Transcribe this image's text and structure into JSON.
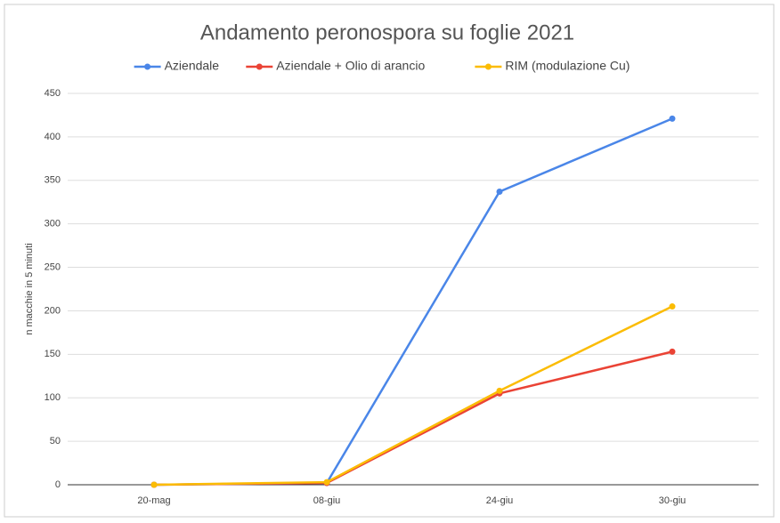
{
  "chart_data": {
    "type": "line",
    "title": "Andamento peronospora su foglie 2021",
    "ylabel": "n macchie in 5 minuti",
    "categories": [
      "20-mag",
      "08-giu",
      "24-giu",
      "30-giu"
    ],
    "series": [
      {
        "name": "Aziendale",
        "color": "#4a86e8",
        "values": [
          0,
          2,
          337,
          421
        ]
      },
      {
        "name": "Aziendale + Olio di arancio",
        "color": "#ea4335",
        "values": [
          0,
          2,
          105,
          153
        ]
      },
      {
        "name": "RIM (modulazione Cu)",
        "color": "#fbbc04",
        "values": [
          0,
          3,
          108,
          205
        ]
      }
    ],
    "ylim": [
      0,
      450
    ],
    "yticks": [
      0,
      50,
      100,
      150,
      200,
      250,
      300,
      350,
      400,
      450
    ],
    "grid": true
  }
}
